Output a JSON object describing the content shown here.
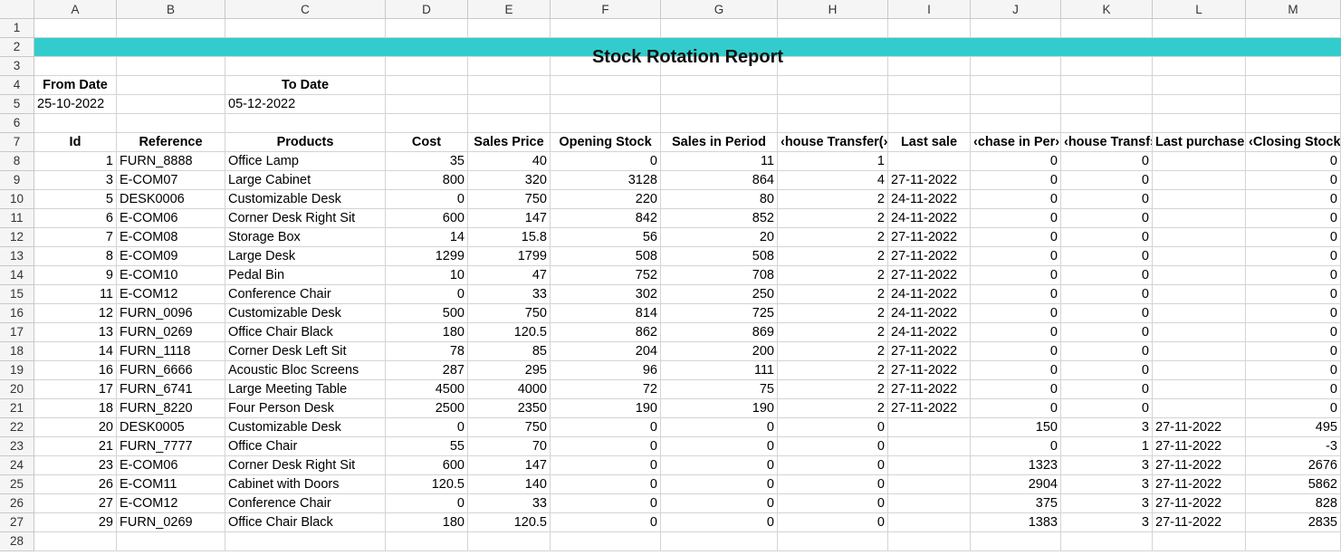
{
  "columns": [
    "A",
    "B",
    "C",
    "D",
    "E",
    "F",
    "G",
    "H",
    "I",
    "J",
    "K",
    "L",
    "M"
  ],
  "rows": [
    "1",
    "2",
    "3",
    "4",
    "5",
    "6",
    "7",
    "8",
    "9",
    "10",
    "11",
    "12",
    "13",
    "14",
    "15",
    "16",
    "17",
    "18",
    "19",
    "20",
    "21",
    "22",
    "23",
    "24",
    "25",
    "26",
    "27",
    "28"
  ],
  "title": "Stock Rotation Report",
  "from_date_label": "From Date",
  "to_date_label": "To Date",
  "from_date": "25-10-2022",
  "to_date": "05-12-2022",
  "table_headers": [
    "Id",
    "Reference",
    "Products",
    "Cost",
    "Sales Price",
    "Opening Stock",
    "Sales in Period",
    "‹house Transfer(›",
    "Last sale",
    "‹chase in Per›",
    "‹house Transf›",
    "Last purchase›",
    "‹Closing Stock"
  ],
  "table_rows": [
    [
      "1",
      "FURN_8888",
      "Office Lamp",
      "35",
      "40",
      "0",
      "11",
      "1",
      "",
      "0",
      "0",
      "",
      "0"
    ],
    [
      "3",
      "E-COM07",
      "Large Cabinet",
      "800",
      "320",
      "3128",
      "864",
      "4",
      "27-11-2022",
      "0",
      "0",
      "",
      "0"
    ],
    [
      "5",
      "DESK0006",
      "Customizable Desk",
      "0",
      "750",
      "220",
      "80",
      "2",
      "24-11-2022",
      "0",
      "0",
      "",
      "0"
    ],
    [
      "6",
      "E-COM06",
      "Corner Desk Right Sit",
      "600",
      "147",
      "842",
      "852",
      "2",
      "24-11-2022",
      "0",
      "0",
      "",
      "0"
    ],
    [
      "7",
      "E-COM08",
      "Storage Box",
      "14",
      "15.8",
      "56",
      "20",
      "2",
      "27-11-2022",
      "0",
      "0",
      "",
      "0"
    ],
    [
      "8",
      "E-COM09",
      "Large Desk",
      "1299",
      "1799",
      "508",
      "508",
      "2",
      "27-11-2022",
      "0",
      "0",
      "",
      "0"
    ],
    [
      "9",
      "E-COM10",
      "Pedal Bin",
      "10",
      "47",
      "752",
      "708",
      "2",
      "27-11-2022",
      "0",
      "0",
      "",
      "0"
    ],
    [
      "11",
      "E-COM12",
      "Conference Chair",
      "0",
      "33",
      "302",
      "250",
      "2",
      "24-11-2022",
      "0",
      "0",
      "",
      "0"
    ],
    [
      "12",
      "FURN_0096",
      "Customizable Desk",
      "500",
      "750",
      "814",
      "725",
      "2",
      "24-11-2022",
      "0",
      "0",
      "",
      "0"
    ],
    [
      "13",
      "FURN_0269",
      "Office Chair Black",
      "180",
      "120.5",
      "862",
      "869",
      "2",
      "24-11-2022",
      "0",
      "0",
      "",
      "0"
    ],
    [
      "14",
      "FURN_1118",
      "Corner Desk Left Sit",
      "78",
      "85",
      "204",
      "200",
      "2",
      "27-11-2022",
      "0",
      "0",
      "",
      "0"
    ],
    [
      "16",
      "FURN_6666",
      "Acoustic Bloc Screens",
      "287",
      "295",
      "96",
      "111",
      "2",
      "27-11-2022",
      "0",
      "0",
      "",
      "0"
    ],
    [
      "17",
      "FURN_6741",
      "Large Meeting Table",
      "4500",
      "4000",
      "72",
      "75",
      "2",
      "27-11-2022",
      "0",
      "0",
      "",
      "0"
    ],
    [
      "18",
      "FURN_8220",
      "Four Person Desk",
      "2500",
      "2350",
      "190",
      "190",
      "2",
      "27-11-2022",
      "0",
      "0",
      "",
      "0"
    ],
    [
      "20",
      "DESK0005",
      "Customizable Desk",
      "0",
      "750",
      "0",
      "0",
      "0",
      "",
      "150",
      "3",
      "27-11-2022",
      "495"
    ],
    [
      "21",
      "FURN_7777",
      "Office Chair",
      "55",
      "70",
      "0",
      "0",
      "0",
      "",
      "0",
      "1",
      "27-11-2022",
      "-3"
    ],
    [
      "23",
      "E-COM06",
      "Corner Desk Right Sit",
      "600",
      "147",
      "0",
      "0",
      "0",
      "",
      "1323",
      "3",
      "27-11-2022",
      "2676"
    ],
    [
      "26",
      "E-COM11",
      "Cabinet with Doors",
      "120.5",
      "140",
      "0",
      "0",
      "0",
      "",
      "2904",
      "3",
      "27-11-2022",
      "5862"
    ],
    [
      "27",
      "E-COM12",
      "Conference Chair",
      "0",
      "33",
      "0",
      "0",
      "0",
      "",
      "375",
      "3",
      "27-11-2022",
      "828"
    ],
    [
      "29",
      "FURN_0269",
      "Office Chair Black",
      "180",
      "120.5",
      "0",
      "0",
      "0",
      "",
      "1383",
      "3",
      "27-11-2022",
      "2835"
    ]
  ],
  "colors": {
    "title_band": "#33cccc",
    "header_bg": "#f5f5f5",
    "grid": "#d4d4d4"
  }
}
